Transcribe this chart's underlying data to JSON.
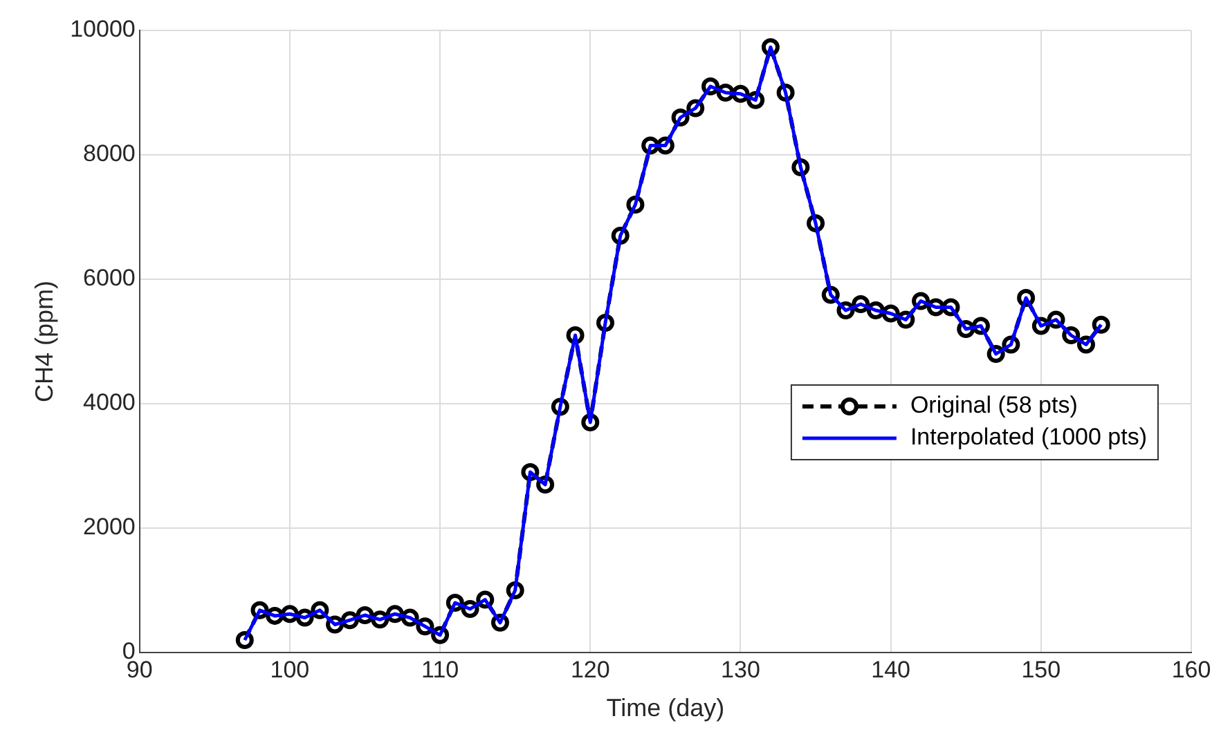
{
  "chart_data": {
    "type": "line",
    "xlabel": "Time (day)",
    "ylabel": "CH4 (ppm)",
    "x": [
      97,
      98,
      99,
      100,
      101,
      102,
      103,
      104,
      105,
      106,
      107,
      108,
      109,
      110,
      111,
      112,
      113,
      114,
      115,
      116,
      117,
      118,
      119,
      120,
      121,
      122,
      123,
      124,
      125,
      126,
      127,
      128,
      129,
      130,
      131,
      132,
      133,
      134,
      135,
      136,
      137,
      138,
      139,
      140,
      141,
      142,
      143,
      144,
      145,
      146,
      147,
      148,
      149,
      150,
      151,
      152,
      153,
      154
    ],
    "series": [
      {
        "name": "Original (58 pts)",
        "color": "#000000",
        "marker": "circle",
        "line_style": "dashed",
        "values": [
          200,
          680,
          590,
          620,
          560,
          680,
          450,
          520,
          600,
          530,
          620,
          560,
          420,
          280,
          800,
          700,
          850,
          480,
          1000,
          2900,
          2700,
          3950,
          5100,
          3700,
          5300,
          6700,
          7200,
          8150,
          8150,
          8600,
          8750,
          9100,
          9000,
          8980,
          8880,
          9730,
          9000,
          7800,
          6900,
          5750,
          5500,
          5600,
          5500,
          5450,
          5350,
          5650,
          5550,
          5550,
          5200,
          5250,
          4800,
          4950,
          5700,
          5250,
          5350,
          5100,
          4950,
          5270
        ]
      },
      {
        "name": "Interpolated (1000 pts)",
        "color": "#0000ff",
        "marker": "none",
        "line_style": "solid",
        "values": [
          200,
          680,
          590,
          620,
          560,
          680,
          450,
          520,
          600,
          530,
          620,
          560,
          420,
          280,
          800,
          700,
          850,
          480,
          1000,
          2900,
          2700,
          3950,
          5100,
          3700,
          5300,
          6700,
          7200,
          8150,
          8150,
          8600,
          8750,
          9100,
          9000,
          8980,
          8880,
          9730,
          9000,
          7800,
          6900,
          5750,
          5500,
          5600,
          5500,
          5450,
          5350,
          5650,
          5550,
          5550,
          5200,
          5250,
          4800,
          4950,
          5700,
          5250,
          5350,
          5100,
          4950,
          5270
        ]
      }
    ],
    "xlim": [
      90,
      160
    ],
    "xticks": [
      90,
      100,
      110,
      120,
      130,
      140,
      150,
      160
    ],
    "ylim": [
      0,
      10000
    ],
    "yticks": [
      0,
      2000,
      4000,
      6000,
      8000,
      10000
    ],
    "grid": true,
    "legend": "right"
  }
}
